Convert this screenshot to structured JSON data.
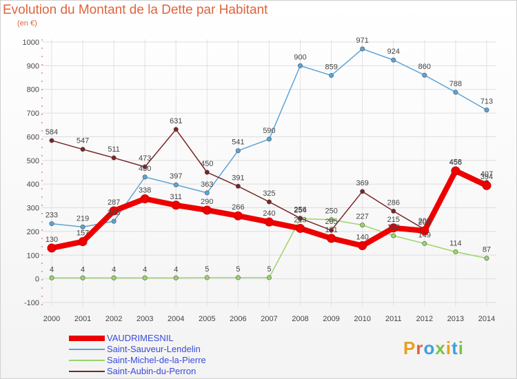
{
  "title": "Evolution du Montant de la Dette par Habitant",
  "subtitle": "(en €)",
  "logo": {
    "text": "Proxiti",
    "colors": [
      "#e8a020",
      "#e0633a",
      "#3aa0e0",
      "#7ac143",
      "#e8a020",
      "#3aa0e0",
      "#7ac143"
    ]
  },
  "chart_data": {
    "type": "line",
    "title": "Evolution du Montant de la Dette par Habitant",
    "ylabel": "(en €)",
    "x": [
      "2000",
      "2001",
      "2002",
      "2003",
      "2004",
      "2005",
      "2006",
      "2007",
      "2008",
      "2009",
      "2010",
      "2011",
      "2012",
      "2013",
      "2014"
    ],
    "ylim": [
      -100,
      1000
    ],
    "yticks": [
      -100,
      0,
      100,
      200,
      300,
      400,
      500,
      600,
      700,
      800,
      900,
      1000
    ],
    "grid": true,
    "legend_position": "bottom-left",
    "series": [
      {
        "name": "VAUDRIMESNIL",
        "color": "#ee0000",
        "bold": true,
        "values": [
          130,
          157,
          287,
          338,
          311,
          290,
          266,
          240,
          213,
          171,
          140,
          215,
          203,
          456,
          394
        ]
      },
      {
        "name": "Saint-Sauveur-Lendelin",
        "color": "#5ba3d6",
        "bold": false,
        "values": [
          233,
          219,
          243,
          430,
          397,
          363,
          541,
          590,
          900,
          859,
          971,
          924,
          860,
          788,
          713
        ]
      },
      {
        "name": "Saint-Michel-de-la-Pierre",
        "color": "#9bd46a",
        "bold": false,
        "values": [
          4,
          4,
          4,
          4,
          4,
          5,
          5,
          5,
          254,
          250,
          227,
          182,
          149,
          114,
          87
        ]
      },
      {
        "name": "Saint-Aubin-du-Perron",
        "color": "#7a2424",
        "bold": false,
        "values": [
          584,
          547,
          511,
          473,
          631,
          450,
          391,
          325,
          256,
          205,
          369,
          286,
          209,
          458,
          407
        ]
      }
    ]
  }
}
